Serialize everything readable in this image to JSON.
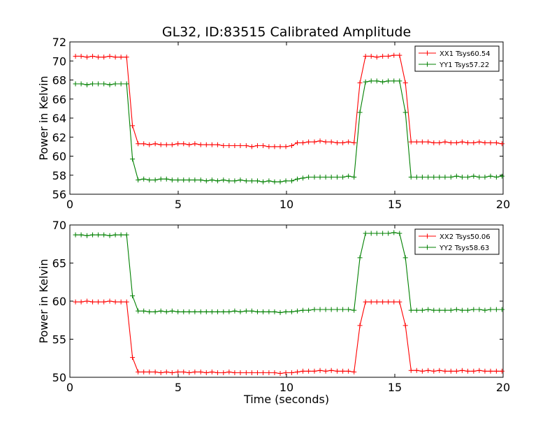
{
  "chart_data": [
    {
      "type": "line",
      "title": "GL32, ID:83515 Calibrated Amplitude",
      "xlabel": "",
      "ylabel": "Power in Kelvin",
      "xlim": [
        0,
        20
      ],
      "ylim": [
        56,
        72
      ],
      "xticks": [
        "0",
        "5",
        "10",
        "15",
        "20"
      ],
      "yticks": [
        "56",
        "58",
        "60",
        "62",
        "64",
        "66",
        "68",
        "70",
        "72"
      ],
      "legend_position": "top-right",
      "grid": false,
      "x": [
        0.26,
        0.52,
        0.79,
        1.05,
        1.31,
        1.57,
        1.84,
        2.1,
        2.36,
        2.62,
        2.89,
        3.15,
        3.41,
        3.67,
        3.94,
        4.2,
        4.46,
        4.72,
        4.99,
        5.25,
        5.51,
        5.77,
        6.04,
        6.3,
        6.56,
        6.82,
        7.09,
        7.35,
        7.61,
        7.87,
        8.14,
        8.4,
        8.66,
        8.92,
        9.19,
        9.45,
        9.71,
        9.97,
        10.24,
        10.5,
        10.76,
        11.02,
        11.29,
        11.55,
        11.81,
        12.07,
        12.34,
        12.6,
        12.86,
        13.12,
        13.39,
        13.65,
        13.91,
        14.17,
        14.44,
        14.7,
        14.96,
        15.22,
        15.49,
        15.75,
        16.01,
        16.27,
        16.54,
        16.8,
        17.06,
        17.32,
        17.59,
        17.85,
        18.11,
        18.37,
        18.64,
        18.9,
        19.16,
        19.42,
        19.69,
        19.95
      ],
      "series": [
        {
          "name": "XX1 Tsys60.54",
          "color": "#ff0000",
          "values": [
            70.5,
            70.5,
            70.4,
            70.5,
            70.4,
            70.4,
            70.5,
            70.4,
            70.4,
            70.4,
            63.2,
            61.3,
            61.3,
            61.2,
            61.3,
            61.2,
            61.2,
            61.2,
            61.3,
            61.3,
            61.2,
            61.3,
            61.2,
            61.2,
            61.2,
            61.2,
            61.1,
            61.1,
            61.1,
            61.1,
            61.1,
            61.0,
            61.1,
            61.1,
            61.0,
            61.0,
            61.0,
            61.0,
            61.1,
            61.4,
            61.4,
            61.5,
            61.5,
            61.6,
            61.5,
            61.5,
            61.4,
            61.4,
            61.5,
            61.4,
            67.7,
            70.5,
            70.5,
            70.4,
            70.5,
            70.5,
            70.6,
            70.6,
            67.7,
            61.5,
            61.5,
            61.5,
            61.5,
            61.4,
            61.4,
            61.5,
            61.4,
            61.4,
            61.5,
            61.4,
            61.4,
            61.5,
            61.4,
            61.4,
            61.4,
            61.3
          ]
        },
        {
          "name": "YY1 Tsys57.22",
          "color": "#008000",
          "values": [
            67.6,
            67.6,
            67.5,
            67.6,
            67.6,
            67.6,
            67.5,
            67.6,
            67.6,
            67.6,
            59.7,
            57.5,
            57.6,
            57.5,
            57.5,
            57.6,
            57.6,
            57.5,
            57.5,
            57.5,
            57.5,
            57.5,
            57.5,
            57.4,
            57.5,
            57.4,
            57.5,
            57.4,
            57.4,
            57.5,
            57.4,
            57.4,
            57.4,
            57.3,
            57.4,
            57.3,
            57.3,
            57.4,
            57.4,
            57.6,
            57.7,
            57.8,
            57.8,
            57.8,
            57.8,
            57.8,
            57.8,
            57.8,
            57.9,
            57.8,
            64.6,
            67.8,
            67.9,
            67.9,
            67.8,
            67.9,
            67.9,
            67.9,
            64.6,
            57.8,
            57.8,
            57.8,
            57.8,
            57.8,
            57.8,
            57.8,
            57.8,
            57.9,
            57.8,
            57.8,
            57.9,
            57.8,
            57.8,
            57.9,
            57.8,
            57.9
          ]
        }
      ]
    },
    {
      "type": "line",
      "title": "",
      "xlabel": "Time (seconds)",
      "ylabel": "Power in Kelvin",
      "xlim": [
        0,
        20
      ],
      "ylim": [
        50,
        70
      ],
      "xticks": [
        "0",
        "5",
        "10",
        "15",
        "20"
      ],
      "yticks": [
        "50",
        "55",
        "60",
        "65",
        "70"
      ],
      "legend_position": "top-right",
      "grid": false,
      "x": [
        0.26,
        0.52,
        0.79,
        1.05,
        1.31,
        1.57,
        1.84,
        2.1,
        2.36,
        2.62,
        2.89,
        3.15,
        3.41,
        3.67,
        3.94,
        4.2,
        4.46,
        4.72,
        4.99,
        5.25,
        5.51,
        5.77,
        6.04,
        6.3,
        6.56,
        6.82,
        7.09,
        7.35,
        7.61,
        7.87,
        8.14,
        8.4,
        8.66,
        8.92,
        9.19,
        9.45,
        9.71,
        9.97,
        10.24,
        10.5,
        10.76,
        11.02,
        11.29,
        11.55,
        11.81,
        12.07,
        12.34,
        12.6,
        12.86,
        13.12,
        13.39,
        13.65,
        13.91,
        14.17,
        14.44,
        14.7,
        14.96,
        15.22,
        15.49,
        15.75,
        16.01,
        16.27,
        16.54,
        16.8,
        17.06,
        17.32,
        17.59,
        17.85,
        18.11,
        18.37,
        18.64,
        18.9,
        19.16,
        19.42,
        19.69,
        19.95
      ],
      "series": [
        {
          "name": "XX2 Tsys50.06",
          "color": "#ff0000",
          "values": [
            59.9,
            59.9,
            60.0,
            59.9,
            59.9,
            59.9,
            60.0,
            59.9,
            59.9,
            59.9,
            52.6,
            50.7,
            50.7,
            50.7,
            50.7,
            50.6,
            50.7,
            50.6,
            50.7,
            50.7,
            50.6,
            50.7,
            50.7,
            50.6,
            50.7,
            50.6,
            50.6,
            50.7,
            50.6,
            50.6,
            50.6,
            50.6,
            50.6,
            50.6,
            50.6,
            50.6,
            50.5,
            50.6,
            50.6,
            50.7,
            50.8,
            50.8,
            50.8,
            50.9,
            50.8,
            50.9,
            50.8,
            50.8,
            50.8,
            50.7,
            56.8,
            59.9,
            59.9,
            59.9,
            59.9,
            59.9,
            59.9,
            59.9,
            56.8,
            50.9,
            50.9,
            50.8,
            50.9,
            50.8,
            50.9,
            50.8,
            50.8,
            50.8,
            50.9,
            50.8,
            50.8,
            50.9,
            50.8,
            50.8,
            50.8,
            50.8
          ]
        },
        {
          "name": "YY2 Tsys58.63",
          "color": "#008000",
          "values": [
            68.7,
            68.7,
            68.6,
            68.7,
            68.7,
            68.7,
            68.6,
            68.7,
            68.7,
            68.7,
            60.7,
            58.7,
            58.7,
            58.6,
            58.6,
            58.7,
            58.6,
            58.7,
            58.6,
            58.6,
            58.6,
            58.6,
            58.6,
            58.6,
            58.6,
            58.6,
            58.6,
            58.6,
            58.7,
            58.6,
            58.7,
            58.7,
            58.6,
            58.6,
            58.6,
            58.6,
            58.5,
            58.6,
            58.6,
            58.7,
            58.8,
            58.8,
            58.9,
            58.9,
            58.9,
            58.9,
            58.9,
            58.9,
            58.9,
            58.8,
            65.7,
            68.9,
            68.9,
            68.9,
            68.9,
            68.9,
            69.0,
            68.9,
            65.7,
            58.8,
            58.8,
            58.8,
            58.9,
            58.8,
            58.8,
            58.8,
            58.8,
            58.9,
            58.8,
            58.8,
            58.9,
            58.9,
            58.8,
            58.9,
            58.9,
            58.9
          ]
        }
      ]
    }
  ]
}
